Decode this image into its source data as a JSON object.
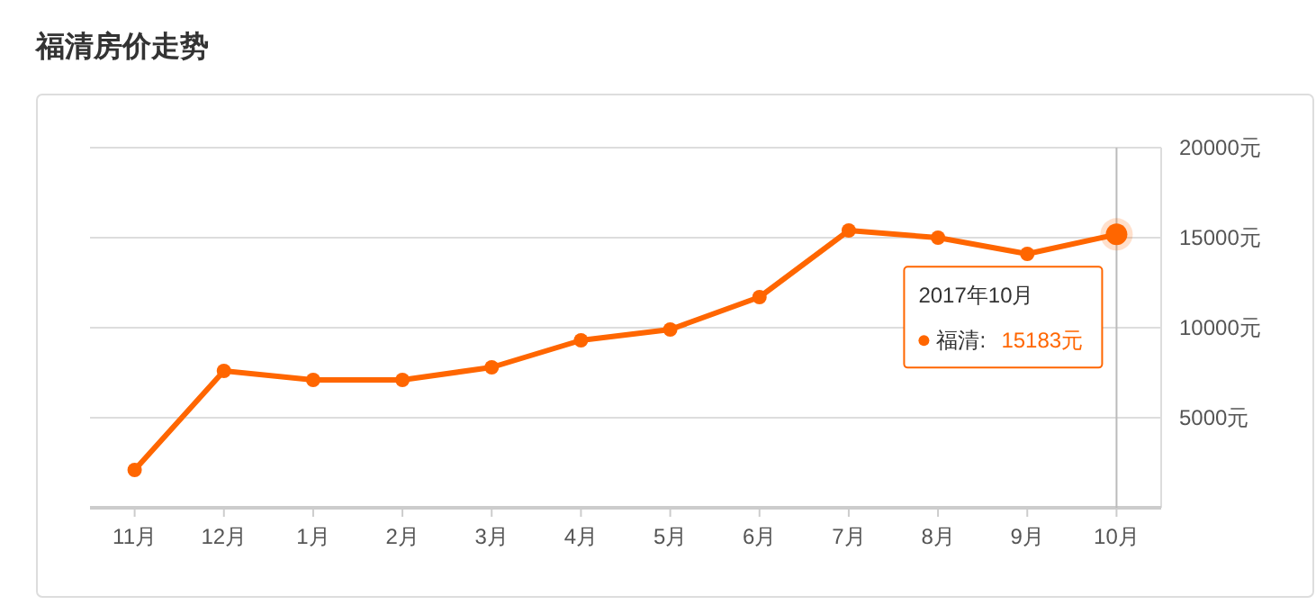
{
  "chart_data": {
    "type": "line",
    "title": "福清房价走势",
    "categories": [
      "11月",
      "12月",
      "1月",
      "2月",
      "3月",
      "4月",
      "5月",
      "6月",
      "7月",
      "8月",
      "9月",
      "10月"
    ],
    "series": [
      {
        "color": "#ff6600",
        "values": [
          2100,
          7600,
          7100,
          7100,
          7800,
          9300,
          9900,
          11700,
          15400,
          15000,
          14100,
          15183
        ]
      }
    ],
    "ylim": [
      0,
      20000
    ],
    "yticks": [
      {
        "value": 0,
        "label": null
      },
      {
        "value": 5000,
        "label": "5000元"
      },
      {
        "value": 10000,
        "label": "10000元"
      },
      {
        "value": 15000,
        "label": "15000元"
      },
      {
        "value": 20000,
        "label": "20000元"
      }
    ],
    "grid": "y",
    "marker": "circle",
    "line_style": "solid",
    "ref_lines": [
      {
        "axis": "x",
        "value": "10月",
        "color": "#bbbbbb"
      }
    ],
    "annotations": [
      "2017年10月",
      "福清:",
      "15183元"
    ]
  }
}
